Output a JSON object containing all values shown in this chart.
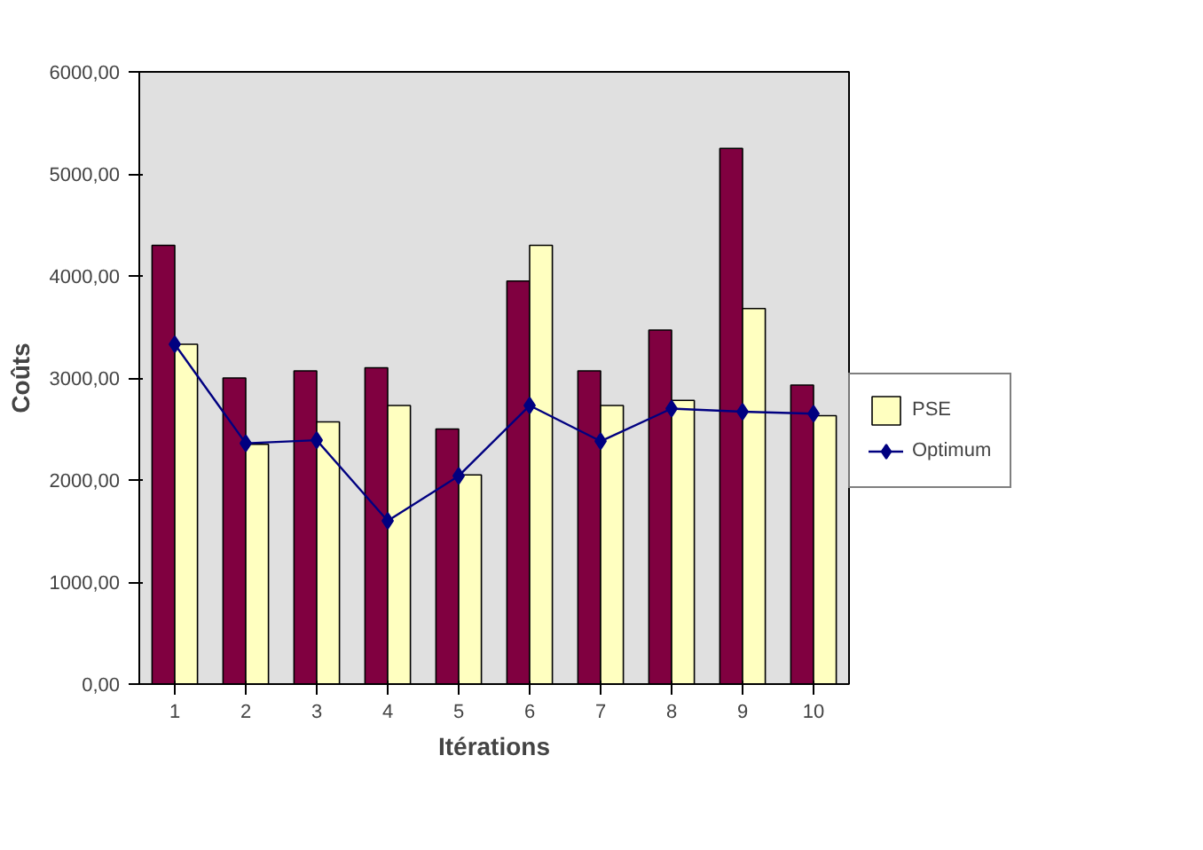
{
  "chart_data": {
    "type": "bar",
    "xlabel": "Itérations",
    "ylabel": "Coûts",
    "categories": [
      "1",
      "2",
      "3",
      "4",
      "5",
      "6",
      "7",
      "8",
      "9",
      "10"
    ],
    "series": [
      {
        "color": "#800040",
        "values": [
          4300,
          3000,
          3070,
          3100,
          2500,
          3950,
          3070,
          3470,
          5250,
          2930
        ]
      },
      {
        "name": "PSE",
        "color": "#ffffc0",
        "values": [
          3330,
          2350,
          2570,
          2730,
          2050,
          4300,
          2730,
          2780,
          3680,
          2630
        ]
      },
      {
        "type": "line",
        "name": "Optimum",
        "color": "#000080",
        "values": [
          3330,
          2360,
          2390,
          1600,
          2040,
          2730,
          2380,
          2700,
          2670,
          2650
        ]
      }
    ],
    "ylim": [
      0,
      6000
    ],
    "yticks": [
      {
        "value": 0,
        "label": "0,00"
      },
      {
        "value": 1000,
        "label": "1000,00"
      },
      {
        "value": 2000,
        "label": "2000,00"
      },
      {
        "value": 3000,
        "label": "3000,00"
      },
      {
        "value": 4000,
        "label": "4000,00"
      },
      {
        "value": 5000,
        "label": "5000,00"
      },
      {
        "value": 6000,
        "label": "6000,00"
      }
    ],
    "grid": false,
    "legend": "right",
    "marker": "diamond"
  }
}
